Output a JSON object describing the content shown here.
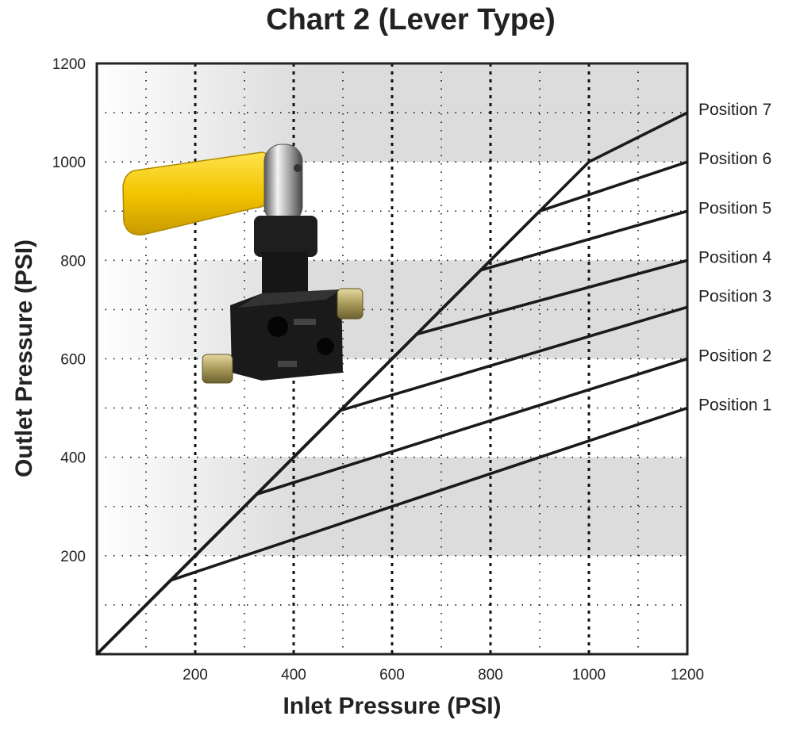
{
  "chart_data": {
    "type": "line",
    "title": "Chart 2 (Lever Type)",
    "xlabel": "Inlet Pressure (PSI)",
    "ylabel": "Outlet Pressure (PSI)",
    "xlim": [
      0,
      1200
    ],
    "ylim": [
      0,
      1200
    ],
    "x_ticks": [
      200,
      400,
      600,
      800,
      1000,
      1200
    ],
    "y_ticks": [
      200,
      400,
      600,
      800,
      1000,
      1200
    ],
    "grid": true,
    "legend": "labels at right end of each line",
    "shaded_bands": [
      [
        200,
        400
      ],
      [
        600,
        800
      ],
      [
        1000,
        1200
      ]
    ],
    "band_color": "#dcdcdc",
    "line_color": "#1a1a1a",
    "image": {
      "name": "lever-type-proportioning-valve",
      "lever_color": "#f2c500",
      "body_color": "#1c1c1c"
    },
    "series": [
      {
        "name": "Position 1",
        "x": [
          0,
          150,
          1200
        ],
        "y": [
          0,
          150,
          500
        ]
      },
      {
        "name": "Position 2",
        "x": [
          0,
          325,
          1200
        ],
        "y": [
          0,
          325,
          600
        ]
      },
      {
        "name": "Position 3",
        "x": [
          0,
          495,
          1200
        ],
        "y": [
          0,
          495,
          705
        ]
      },
      {
        "name": "Position 4",
        "x": [
          0,
          650,
          1200
        ],
        "y": [
          0,
          650,
          800
        ]
      },
      {
        "name": "Position 5",
        "x": [
          0,
          780,
          1200
        ],
        "y": [
          0,
          780,
          900
        ]
      },
      {
        "name": "Position 6",
        "x": [
          0,
          900,
          1200
        ],
        "y": [
          0,
          900,
          1000
        ]
      },
      {
        "name": "Position 7",
        "x": [
          0,
          1000,
          1200
        ],
        "y": [
          0,
          1000,
          1100
        ]
      }
    ]
  }
}
